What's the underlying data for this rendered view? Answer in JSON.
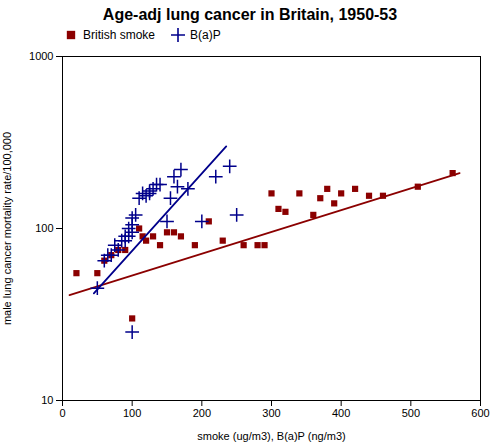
{
  "chart_data": {
    "type": "scatter",
    "title": "Age-adj lung cancer in Britain, 1950-53",
    "xlabel": "smoke (ug/m3), B(a)P (ng/m3)",
    "ylabel": "male lung cancer mortality rate/100,000",
    "log": "y",
    "legend": "upper left",
    "xlim": [
      0,
      600
    ],
    "ylim": [
      10,
      1000
    ],
    "xticks": [
      0,
      100,
      200,
      300,
      400,
      500,
      600
    ],
    "yticks": [
      10,
      100,
      1000
    ],
    "series": [
      {
        "name": "British smoke",
        "color": "#8B0000",
        "marker": "square",
        "x": [
          20,
          50,
          60,
          70,
          80,
          90,
          100,
          110,
          115,
          120,
          130,
          140,
          150,
          160,
          170,
          190,
          210,
          230,
          260,
          280,
          290,
          300,
          310,
          320,
          340,
          360,
          370,
          380,
          390,
          400,
          420,
          440,
          460,
          510,
          560
        ],
        "values": [
          55,
          55,
          65,
          70,
          75,
          75,
          30,
          100,
          90,
          85,
          90,
          80,
          95,
          95,
          90,
          80,
          110,
          85,
          80,
          80,
          80,
          160,
          130,
          125,
          160,
          120,
          150,
          170,
          140,
          160,
          170,
          155,
          155,
          175,
          210
        ],
        "fit_x": [
          10,
          570
        ],
        "fit_values": [
          41,
          210
        ]
      },
      {
        "name": "B(a)P",
        "color": "#00008B",
        "marker": "plus",
        "x": [
          50,
          60,
          65,
          70,
          75,
          80,
          85,
          90,
          90,
          95,
          95,
          100,
          100,
          100,
          105,
          110,
          115,
          120,
          125,
          125,
          130,
          135,
          140,
          150,
          155,
          160,
          165,
          170,
          180,
          200,
          220,
          240,
          250,
          100
        ],
        "values": [
          45,
          65,
          70,
          70,
          80,
          75,
          85,
          85,
          90,
          90,
          100,
          95,
          105,
          115,
          120,
          150,
          160,
          155,
          160,
          165,
          170,
          180,
          180,
          110,
          150,
          200,
          175,
          220,
          170,
          110,
          200,
          230,
          120,
          25
        ],
        "fit_x": [
          45,
          235
        ],
        "fit_values": [
          42,
          300
        ]
      }
    ]
  }
}
